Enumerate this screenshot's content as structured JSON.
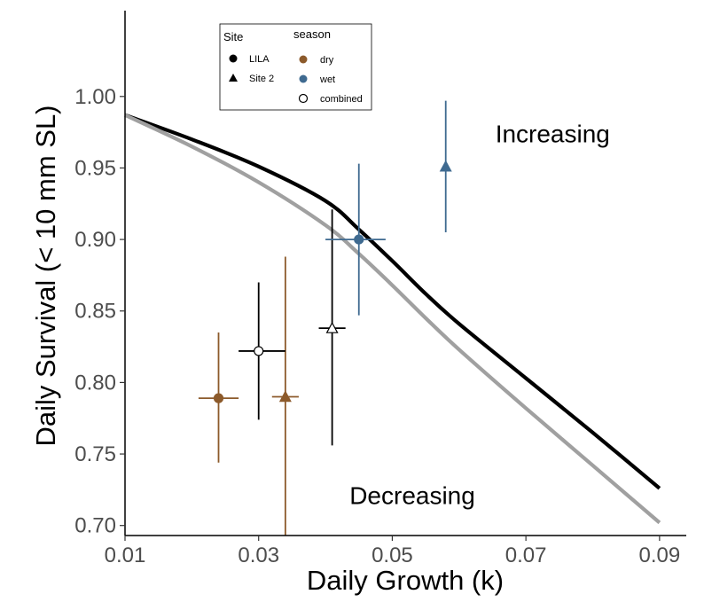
{
  "chart_data": {
    "type": "scatter",
    "xlabel": "Daily Growth (k)",
    "ylabel": "Daily Survival (< 10 mm SL)",
    "xlim": [
      0.01,
      0.094
    ],
    "ylim": [
      0.693,
      1.06
    ],
    "x_ticks": [
      0.01,
      0.03,
      0.05,
      0.07,
      0.09
    ],
    "x_tick_labels": [
      "0.01",
      "0.03",
      "0.05",
      "0.07",
      "0.09"
    ],
    "y_ticks": [
      0.7,
      0.75,
      0.8,
      0.85,
      0.9,
      0.95,
      1.0
    ],
    "y_tick_labels": [
      "0.70",
      "0.75",
      "0.80",
      "0.85",
      "0.90",
      "0.95",
      "1.00"
    ],
    "grid": false,
    "colors": {
      "dry": "#8c5a2b",
      "wet": "#3f6a90",
      "combined": "#000000",
      "curve_black": "#000000",
      "curve_gray": "#a0a0a0"
    },
    "curves": [
      {
        "color": "#000000",
        "x": [
          0.01,
          0.02,
          0.03,
          0.04,
          0.045,
          0.05,
          0.055,
          0.06,
          0.07,
          0.08,
          0.09
        ],
        "y": [
          0.987,
          0.97,
          0.951,
          0.927,
          0.907,
          0.885,
          0.862,
          0.841,
          0.803,
          0.765,
          0.726
        ]
      },
      {
        "color": "#a0a0a0",
        "x": [
          0.01,
          0.02,
          0.03,
          0.04,
          0.045,
          0.05,
          0.055,
          0.06,
          0.07,
          0.08,
          0.09
        ],
        "y": [
          0.987,
          0.965,
          0.94,
          0.91,
          0.89,
          0.868,
          0.845,
          0.823,
          0.782,
          0.742,
          0.702
        ]
      }
    ],
    "points": [
      {
        "site": "LILA",
        "season": "dry",
        "x": 0.024,
        "y": 0.789,
        "xmin": 0.021,
        "xmax": 0.027,
        "ymin": 0.744,
        "ymax": 0.835
      },
      {
        "site": "Site 2",
        "season": "dry",
        "x": 0.034,
        "y": 0.79,
        "xmin": 0.032,
        "xmax": 0.036,
        "ymin": 0.693,
        "ymax": 0.888
      },
      {
        "site": "LILA",
        "season": "combined",
        "x": 0.03,
        "y": 0.822,
        "xmin": 0.027,
        "xmax": 0.034,
        "ymin": 0.774,
        "ymax": 0.87
      },
      {
        "site": "Site 2",
        "season": "combined",
        "x": 0.041,
        "y": 0.838,
        "xmin": 0.039,
        "xmax": 0.043,
        "ymin": 0.756,
        "ymax": 0.921
      },
      {
        "site": "LILA",
        "season": "wet",
        "x": 0.045,
        "y": 0.9,
        "xmin": 0.04,
        "xmax": 0.049,
        "ymin": 0.847,
        "ymax": 0.953
      },
      {
        "site": "Site 2",
        "season": "wet",
        "x": 0.058,
        "y": 0.951,
        "xmin": 0.058,
        "xmax": 0.058,
        "ymin": 0.905,
        "ymax": 0.997
      }
    ],
    "annotations": [
      {
        "text": "Increasing",
        "x": 0.074,
        "y": 0.968
      },
      {
        "text": "Decreasing",
        "x": 0.053,
        "y": 0.715
      }
    ],
    "legend": {
      "position": "top-left",
      "site_title": "Site",
      "site_items": [
        {
          "label": "LILA",
          "shape": "circle"
        },
        {
          "label": "Site 2",
          "shape": "triangle"
        }
      ],
      "season_title": "season",
      "season_items": [
        {
          "label": "dry",
          "key": "dry"
        },
        {
          "label": "wet",
          "key": "wet"
        },
        {
          "label": "combined",
          "key": "combined"
        }
      ]
    }
  }
}
